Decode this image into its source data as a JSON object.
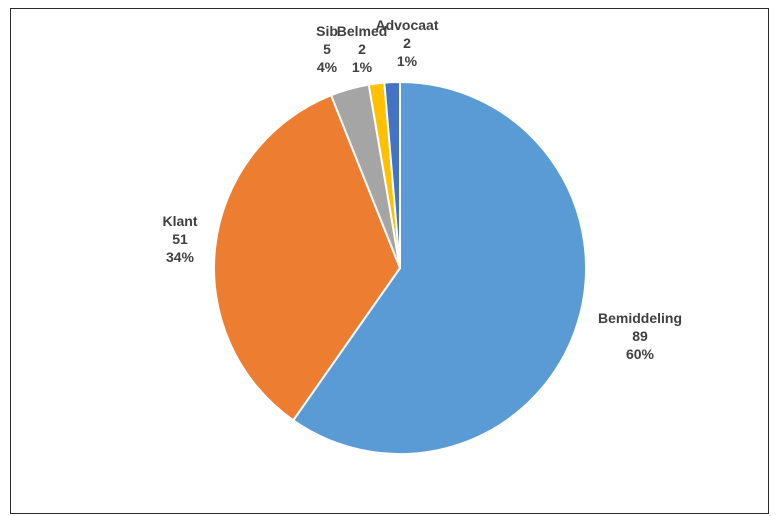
{
  "chart_data": {
    "type": "pie",
    "title": "",
    "slices": [
      {
        "label": "Bemiddeling",
        "value": 89,
        "percent": "60%",
        "color": "#5b9bd5"
      },
      {
        "label": "Klant",
        "value": 51,
        "percent": "34%",
        "color": "#ed7d31"
      },
      {
        "label": "Sib",
        "value": 5,
        "percent": "4%",
        "color": "#a5a5a5"
      },
      {
        "label": "Belmed",
        "value": 2,
        "percent": "1%",
        "color": "#ffc000"
      },
      {
        "label": "Advocaat",
        "value": 2,
        "percent": "1%",
        "color": "#4472c4"
      }
    ],
    "start_angle_deg": 0,
    "direction": "clockwise",
    "legend": "none",
    "data_labels": "outside"
  }
}
